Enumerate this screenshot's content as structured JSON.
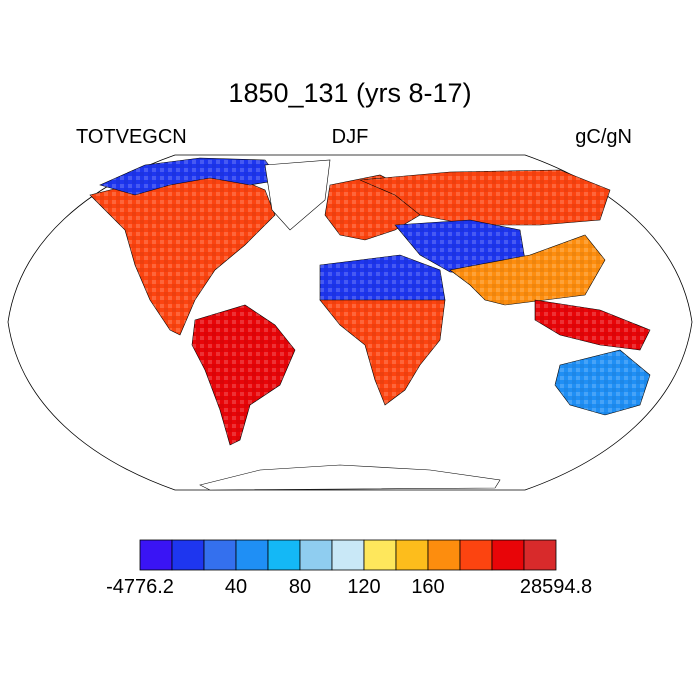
{
  "title": "1850_131 (yrs 8-17)",
  "variable": "TOTVEGCN",
  "season": "DJF",
  "units": "gC/gN",
  "colors": {
    "ocean": "#ffffff",
    "land_nodata": "#ffffff",
    "outline": "#000000"
  },
  "colorbar": {
    "colors": [
      "#3a14f5",
      "#1e36ef",
      "#3470ee",
      "#1f8ff5",
      "#14b8f6",
      "#8fcdf0",
      "#c9e8f7",
      "#fee75c",
      "#fdbd1c",
      "#fd8d0e",
      "#fc4410",
      "#e80508",
      "#d82a2b"
    ],
    "labels": [
      {
        "text": "-4776.2",
        "boundary": 0
      },
      {
        "text": "40",
        "boundary": 3
      },
      {
        "text": "80",
        "boundary": 5
      },
      {
        "text": "120",
        "boundary": 7
      },
      {
        "text": "160",
        "boundary": 9
      },
      {
        "text": "28594.8",
        "boundary": 13
      }
    ]
  },
  "regions": [
    {
      "name": "north-america",
      "color_index": 10
    },
    {
      "name": "canada-arctic",
      "color_index": 1
    },
    {
      "name": "greenland",
      "color_index": -1
    },
    {
      "name": "south-america",
      "color_index": 11
    },
    {
      "name": "europe",
      "color_index": 10
    },
    {
      "name": "russia",
      "color_index": 10
    },
    {
      "name": "central-asia",
      "color_index": 1
    },
    {
      "name": "sahara",
      "color_index": 1
    },
    {
      "name": "africa-south",
      "color_index": 10
    },
    {
      "name": "india-china",
      "color_index": 9
    },
    {
      "name": "southeast-asia",
      "color_index": 11
    },
    {
      "name": "australia",
      "color_index": 3
    },
    {
      "name": "antarctica",
      "color_index": -1
    }
  ]
}
